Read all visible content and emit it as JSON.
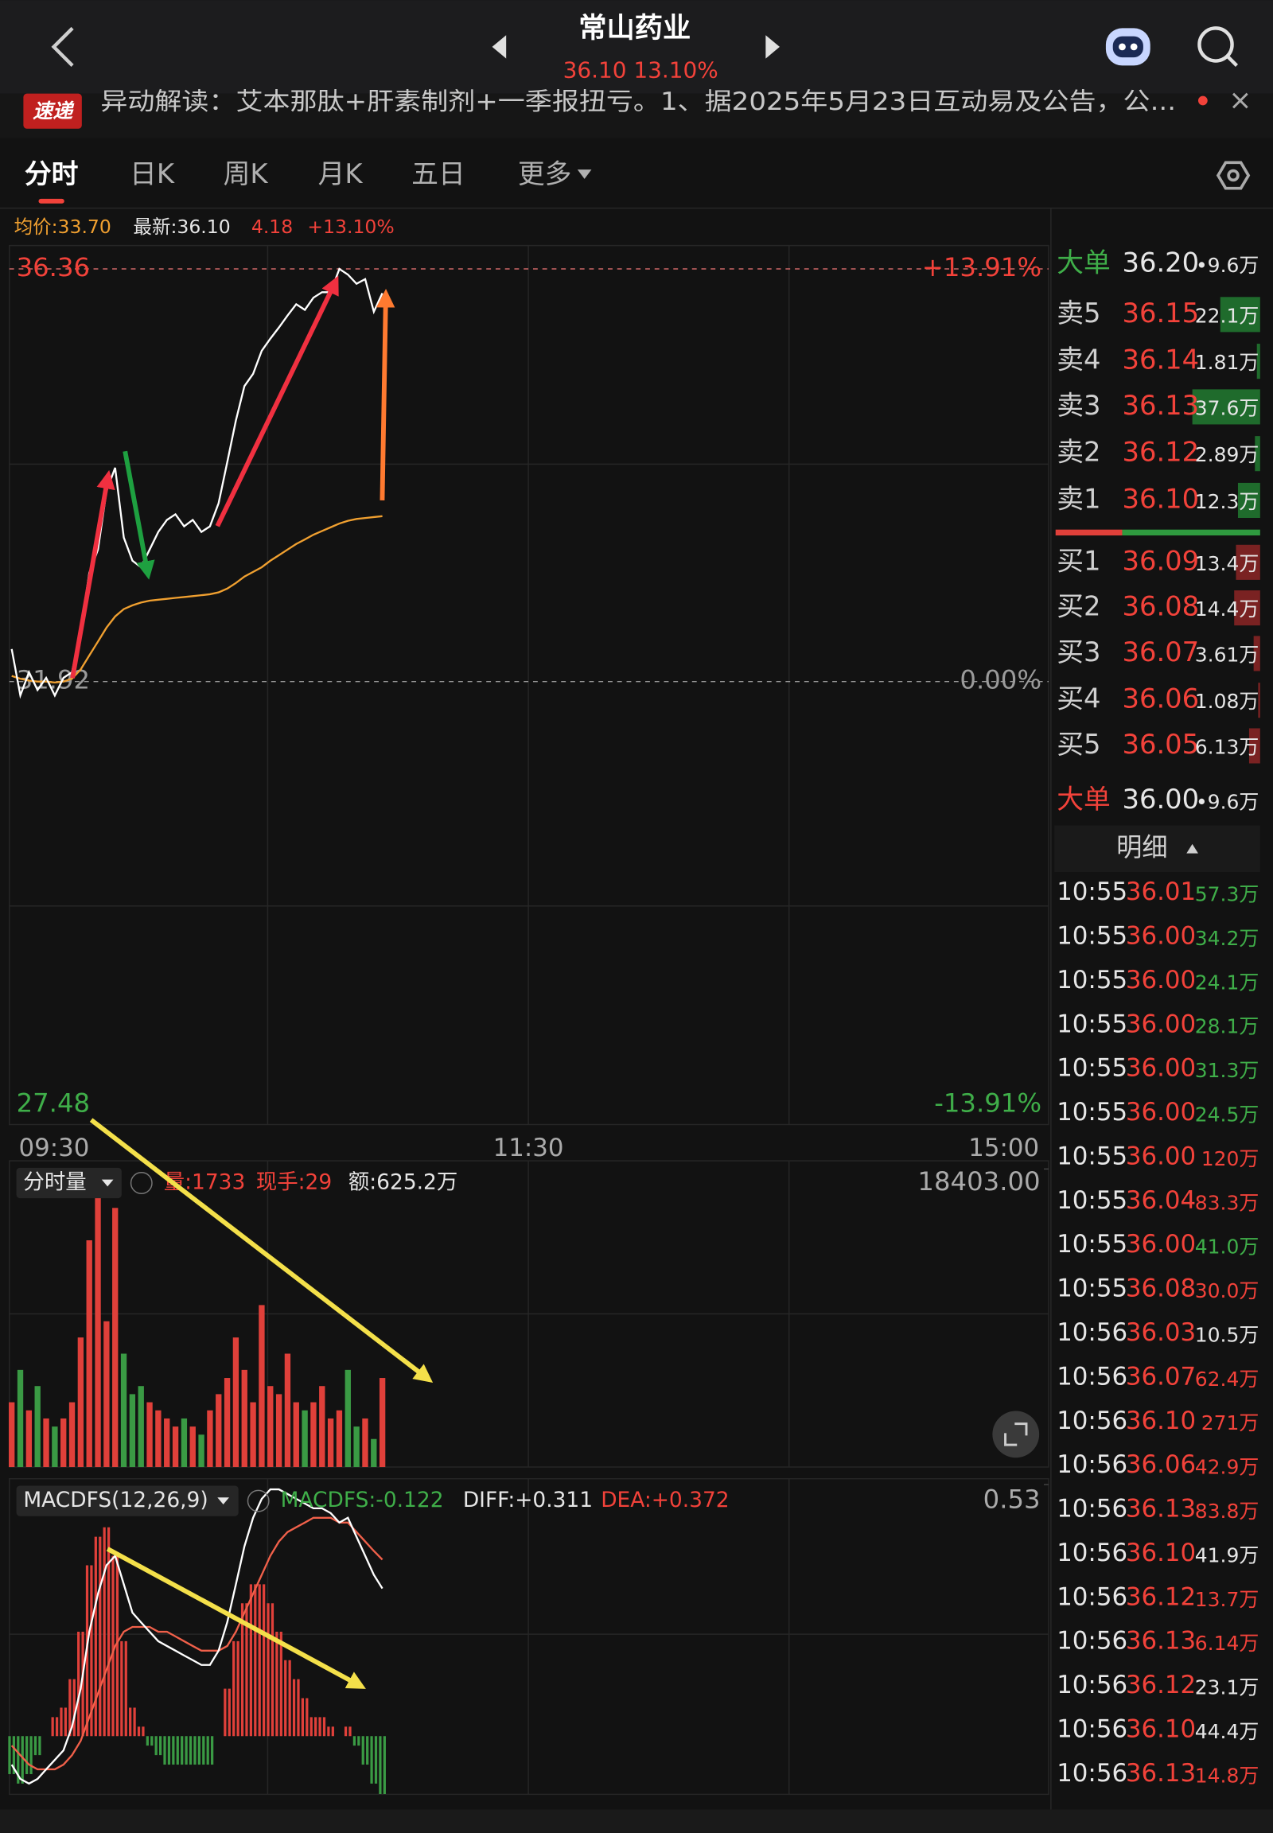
{
  "header": {
    "title": "常山药业",
    "price": "36.10",
    "change": "13.10%"
  },
  "news": {
    "badge": "速递",
    "text": "异动解读：艾本那肽+肝素制剂+一季报扭亏。1、据2025年5月23日互动易及公告，公..."
  },
  "tabs": [
    "分时",
    "日K",
    "周K",
    "月K",
    "五日",
    "更多"
  ],
  "info": {
    "average": "均价:33.70",
    "latest": "最新:36.10",
    "change": "4.18",
    "percent": "+13.10%"
  },
  "price_chart": {
    "ylim": [
      27.48,
      36.36
    ],
    "yticks": [
      36.36,
      31.92,
      27.48
    ],
    "percent_labels": [
      "+13.91%",
      "0.00%",
      "-13.91%"
    ],
    "times": [
      "09:30",
      "11:30",
      "15:00"
    ],
    "price": [
      32.27,
      31.77,
      32.02,
      31.83,
      31.96,
      31.77,
      31.96,
      32.02,
      32.46,
      33.09,
      33.34,
      33.97,
      34.22,
      33.47,
      33.22,
      33.15,
      33.34,
      33.53,
      33.66,
      33.72,
      33.59,
      33.66,
      33.53,
      33.59,
      33.84,
      34.28,
      34.73,
      35.1,
      35.23,
      35.48,
      35.61,
      35.73,
      35.86,
      35.98,
      35.92,
      36.05,
      36.11,
      36.11,
      36.36,
      36.3,
      36.2,
      36.25,
      35.9,
      36.1
    ],
    "average": [
      31.98,
      31.95,
      31.93,
      31.92,
      31.92,
      31.91,
      31.92,
      31.95,
      32.05,
      32.2,
      32.35,
      32.5,
      32.62,
      32.7,
      32.74,
      32.77,
      32.79,
      32.8,
      32.81,
      32.82,
      32.83,
      32.84,
      32.85,
      32.86,
      32.88,
      32.92,
      32.98,
      33.05,
      33.1,
      33.15,
      33.22,
      33.28,
      33.34,
      33.4,
      33.45,
      33.5,
      33.54,
      33.58,
      33.62,
      33.65,
      33.67,
      33.68,
      33.69,
      33.7
    ]
  },
  "volume_chart": {
    "title": "分时量",
    "volume": "量:1733",
    "hand": "现手:29",
    "amount": "额:625.2万",
    "ylim": [
      0,
      18403
    ],
    "yticks": [
      {
        "value": 18403,
        "label": "18403.00"
      }
    ],
    "values": [
      4000,
      6000,
      3500,
      5000,
      3000,
      2500,
      3000,
      4000,
      8000,
      14000,
      17000,
      9000,
      16000,
      7000,
      4500,
      5000,
      4000,
      3500,
      3000,
      2500,
      3000,
      2500,
      2000,
      3500,
      4500,
      5500,
      8000,
      6000,
      4000,
      10000,
      5000,
      4500,
      7000,
      4000,
      3500,
      4000,
      5000,
      3000,
      3500,
      6000,
      2500,
      3000,
      1733,
      5500
    ]
  },
  "macd_chart": {
    "title": "MACDFS(12,26,9)",
    "macdfs": "MACDFS:-0.122",
    "diff": "DIFF:+0.311",
    "dea": "DEA:+0.372",
    "ylim": [
      -0.13,
      0.53
    ],
    "yticks": [
      0.53
    ],
    "diff_values": [
      -0.06,
      -0.09,
      -0.1,
      -0.09,
      -0.07,
      -0.05,
      -0.03,
      0.02,
      0.1,
      0.22,
      0.3,
      0.36,
      0.38,
      0.32,
      0.26,
      0.24,
      0.22,
      0.2,
      0.19,
      0.18,
      0.17,
      0.16,
      0.15,
      0.15,
      0.18,
      0.24,
      0.32,
      0.4,
      0.46,
      0.5,
      0.52,
      0.52,
      0.51,
      0.5,
      0.49,
      0.48,
      0.48,
      0.47,
      0.45,
      0.46,
      0.42,
      0.38,
      0.34,
      0.311
    ],
    "dea_values": [
      -0.02,
      -0.04,
      -0.06,
      -0.07,
      -0.07,
      -0.07,
      -0.06,
      -0.04,
      -0.01,
      0.04,
      0.09,
      0.14,
      0.19,
      0.22,
      0.23,
      0.23,
      0.23,
      0.22,
      0.22,
      0.21,
      0.2,
      0.19,
      0.18,
      0.18,
      0.18,
      0.19,
      0.22,
      0.26,
      0.3,
      0.34,
      0.38,
      0.41,
      0.43,
      0.44,
      0.45,
      0.46,
      0.46,
      0.46,
      0.45,
      0.45,
      0.43,
      0.41,
      0.39,
      0.372
    ],
    "hist_values": [
      -0.08,
      -0.1,
      -0.08,
      -0.04,
      0,
      0.04,
      0.06,
      0.12,
      0.22,
      0.36,
      0.42,
      0.44,
      0.38,
      0.2,
      0.06,
      0.02,
      -0.02,
      -0.04,
      -0.06,
      -0.06,
      -0.06,
      -0.06,
      -0.06,
      -0.06,
      0,
      0.1,
      0.2,
      0.28,
      0.32,
      0.32,
      0.28,
      0.22,
      0.16,
      0.12,
      0.08,
      0.04,
      0.04,
      0.02,
      0,
      0.02,
      -0.02,
      -0.06,
      -0.1,
      -0.122
    ]
  },
  "order_book": {
    "big_sell": {
      "label": "大单",
      "price": "36.20",
      "volume": "•9.6万"
    },
    "sells": [
      {
        "label": "卖5",
        "price": "36.15",
        "volume": {
          "value": 22.1,
          "label": "22.1万"
        }
      },
      {
        "label": "卖4",
        "price": "36.14",
        "volume": {
          "value": 1.81,
          "label": "1.81万"
        }
      },
      {
        "label": "卖3",
        "price": "36.13",
        "volume": {
          "value": 37.6,
          "label": "37.6万"
        }
      },
      {
        "label": "卖2",
        "price": "36.12",
        "volume": {
          "value": 2.89,
          "label": "2.89万"
        }
      },
      {
        "label": "卖1",
        "price": "36.10",
        "volume": {
          "value": 12.3,
          "label": "12.3万"
        }
      }
    ],
    "buys": [
      {
        "label": "买1",
        "price": "36.09",
        "volume": {
          "value": 13.4,
          "label": "13.4万"
        }
      },
      {
        "label": "买2",
        "price": "36.08",
        "volume": {
          "value": 14.4,
          "label": "14.4万"
        }
      },
      {
        "label": "买3",
        "price": "36.07",
        "volume": {
          "value": 3.61,
          "label": "3.61万"
        }
      },
      {
        "label": "买4",
        "price": "36.06",
        "volume": {
          "value": 1.08,
          "label": "1.08万"
        }
      },
      {
        "label": "买5",
        "price": "36.05",
        "volume": {
          "value": 6.13,
          "label": "6.13万"
        }
      }
    ],
    "big_buy": {
      "label": "大单",
      "price": "36.00",
      "volume": "•9.6万"
    }
  },
  "details": {
    "title": "明细",
    "rows": [
      {
        "time": "10:55",
        "price": "36.01",
        "volume": "57.3万",
        "color": "#3fae49"
      },
      {
        "time": "10:55",
        "price": "36.00",
        "volume": "34.2万",
        "color": "#3fae49"
      },
      {
        "time": "10:55",
        "price": "36.00",
        "volume": "24.1万",
        "color": "#3fae49"
      },
      {
        "time": "10:55",
        "price": "36.00",
        "volume": "28.1万",
        "color": "#3fae49"
      },
      {
        "time": "10:55",
        "price": "36.00",
        "volume": "31.3万",
        "color": "#3fae49"
      },
      {
        "time": "10:55",
        "price": "36.00",
        "volume": "24.5万",
        "color": "#3fae49"
      },
      {
        "time": "10:55",
        "price": "36.00",
        "volume": "120万",
        "color": "#f2423a"
      },
      {
        "time": "10:55",
        "price": "36.04",
        "volume": "83.3万",
        "color": "#f2423a"
      },
      {
        "time": "10:55",
        "price": "36.00",
        "volume": "41.0万",
        "color": "#3fae49"
      },
      {
        "time": "10:55",
        "price": "36.08",
        "volume": "30.0万",
        "color": "#f2423a"
      },
      {
        "time": "10:56",
        "price": "36.03",
        "volume": "10.5万",
        "color": "#e6e6e6"
      },
      {
        "time": "10:56",
        "price": "36.07",
        "volume": "62.4万",
        "color": "#f2423a"
      },
      {
        "time": "10:56",
        "price": "36.10",
        "volume": "271万",
        "color": "#f2423a"
      },
      {
        "time": "10:56",
        "price": "36.06",
        "volume": "42.9万",
        "color": "#f2423a"
      },
      {
        "time": "10:56",
        "price": "36.13",
        "volume": "83.8万",
        "color": "#f2423a"
      },
      {
        "time": "10:56",
        "price": "36.10",
        "volume": "41.9万",
        "color": "#e6e6e6"
      },
      {
        "time": "10:56",
        "price": "36.12",
        "volume": "13.7万",
        "color": "#f2423a"
      },
      {
        "time": "10:56",
        "price": "36.13",
        "volume": "6.14万",
        "color": "#f2423a"
      },
      {
        "time": "10:56",
        "price": "36.12",
        "volume": "23.1万",
        "color": "#e6e6e6"
      },
      {
        "time": "10:56",
        "price": "36.10",
        "volume": "44.4万",
        "color": "#e6e6e6"
      },
      {
        "time": "10:56",
        "price": "36.13",
        "volume": "14.8万",
        "color": "#f2423a"
      }
    ]
  }
}
